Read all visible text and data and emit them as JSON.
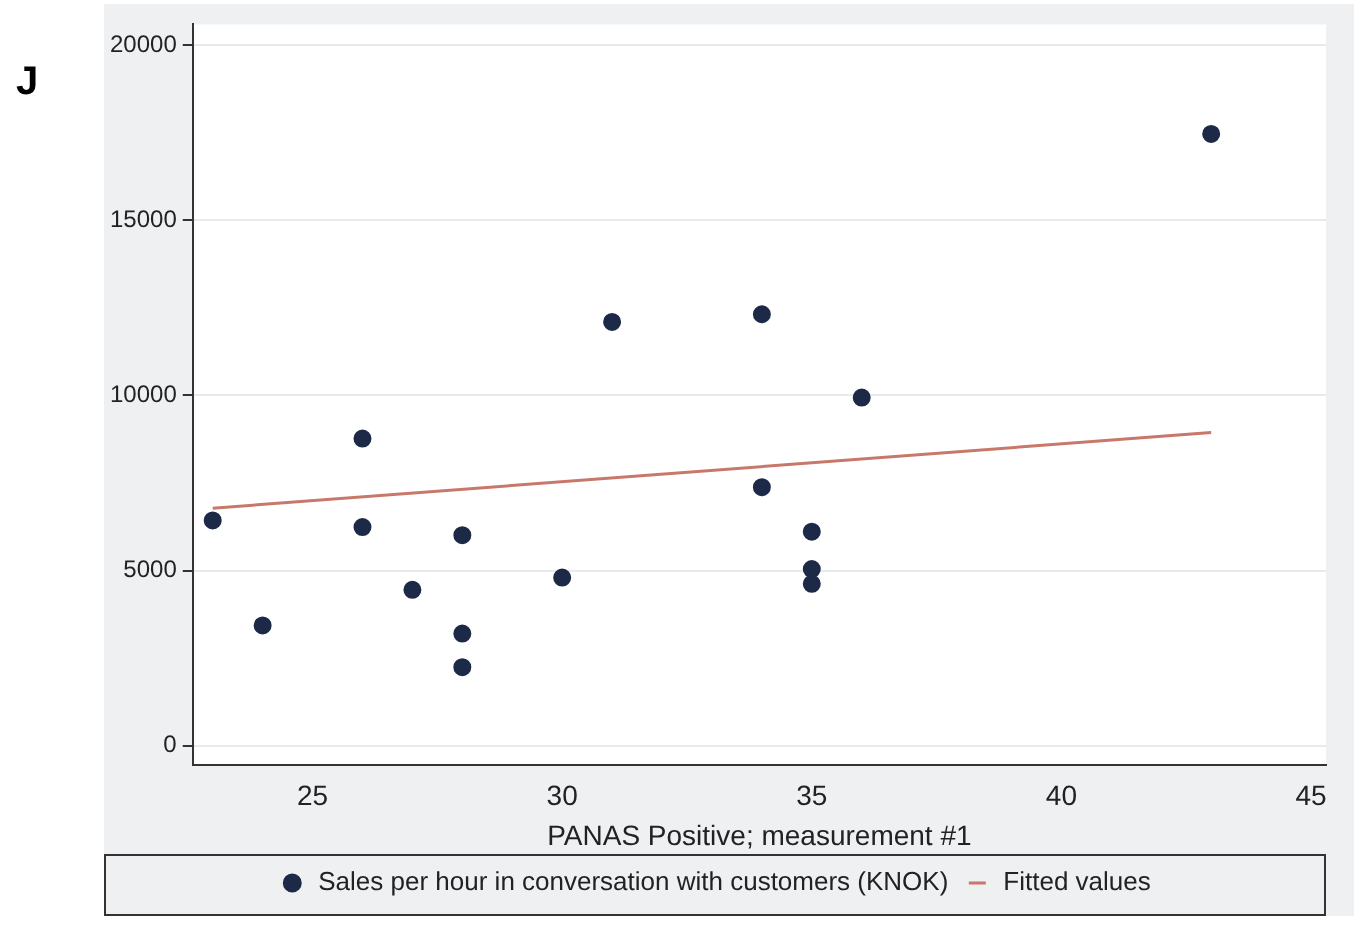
{
  "chart_data": {
    "type": "scatter",
    "xlabel": "PANAS Positive; measurement #1",
    "annotations": [
      "J"
    ],
    "xlim": [
      22.6,
      45.3
    ],
    "xticks": [
      25,
      30,
      35,
      40,
      45
    ],
    "ylim": [
      -550,
      20600
    ],
    "yticks": [
      0,
      5000,
      10000,
      15000,
      20000
    ],
    "grid": "y",
    "legend": "bottom",
    "series": [
      {
        "name": "Sales per hour in conversation with customers (KNOK)",
        "type": "scatter",
        "marker": "circle",
        "color": "#1c2a48",
        "x": [
          23,
          24,
          26,
          26,
          27,
          28,
          28,
          28,
          30,
          31,
          34,
          34,
          35,
          35,
          35,
          36,
          43
        ],
        "values": [
          6430,
          3430,
          8770,
          6240,
          4450,
          6010,
          3200,
          2240,
          4800,
          12100,
          12320,
          7380,
          6110,
          5040,
          4620,
          9940,
          17470
        ]
      },
      {
        "name": "Fitted values",
        "type": "line",
        "color": "#c8786a",
        "line_style": "solid",
        "x": [
          23,
          43
        ],
        "values": [
          6780,
          8940
        ]
      }
    ]
  }
}
